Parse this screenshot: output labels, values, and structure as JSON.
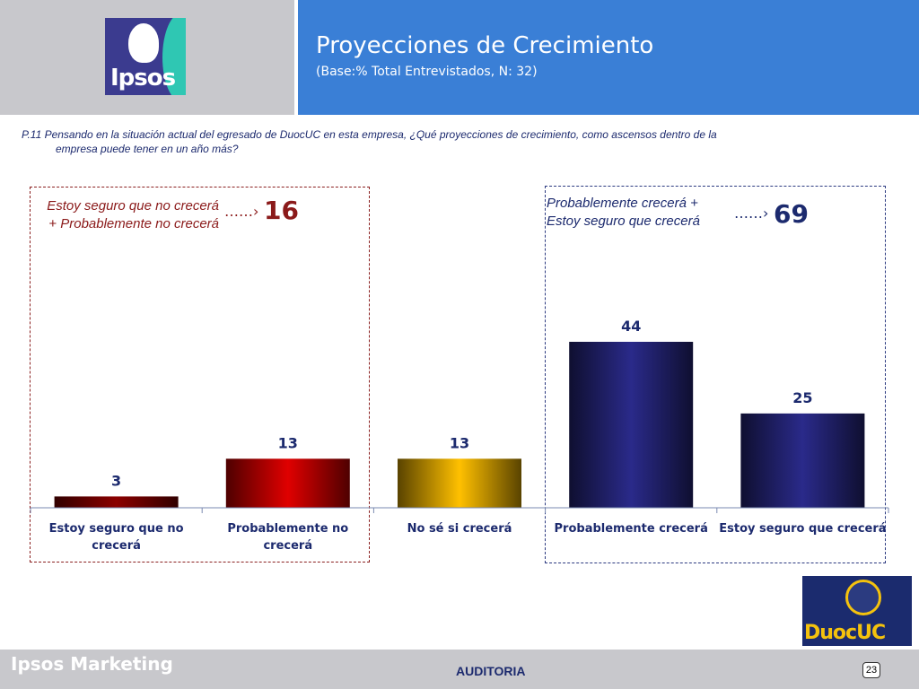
{
  "header": {
    "title": "Proyecciones de Crecimiento",
    "subtitle": "(Base:% Total Entrevistados, N: 32)",
    "logo_text": "Ipsos"
  },
  "question": {
    "line1": "P.11 Pensando en la situación actual del egresado de DuocUC en  esta empresa, ¿Qué  proyecciones de crecimiento, como ascensos dentro de la",
    "line2": "empresa  puede tener en un año más?"
  },
  "annotations": {
    "negative": {
      "label": "Estoy seguro que no crecerá + Probablemente no crecerá",
      "value": "16",
      "arrow": "……›"
    },
    "positive": {
      "label": "Probablemente crecerá + Estoy seguro que crecerá",
      "value": "69",
      "arrow": "……›"
    }
  },
  "chart_data": {
    "type": "bar",
    "categories": [
      "Estoy seguro que no crecerá",
      "Probablemente no crecerá",
      "No sé si crecerá",
      "Probablemente crecerá",
      "Estoy seguro que crecerá"
    ],
    "category_lines": [
      [
        "Estoy seguro que no",
        "crecerá"
      ],
      [
        "Probablemente no",
        "crecerá"
      ],
      [
        "No sé si crecerá"
      ],
      [
        "Probablemente crecerá"
      ],
      [
        "Estoy seguro que crecerá"
      ]
    ],
    "values": [
      3,
      13,
      13,
      44,
      25
    ],
    "ylim": [
      0,
      50
    ],
    "colors": [
      "#8b0000",
      "#e00000",
      "#ffc000",
      "#2a2a8a",
      "#2a2a8a"
    ],
    "grid": false
  },
  "footer": {
    "brand": "Ipsos Marketing",
    "center": "AUDITORIA",
    "page": "23",
    "partner_logo": "DuocUC"
  }
}
